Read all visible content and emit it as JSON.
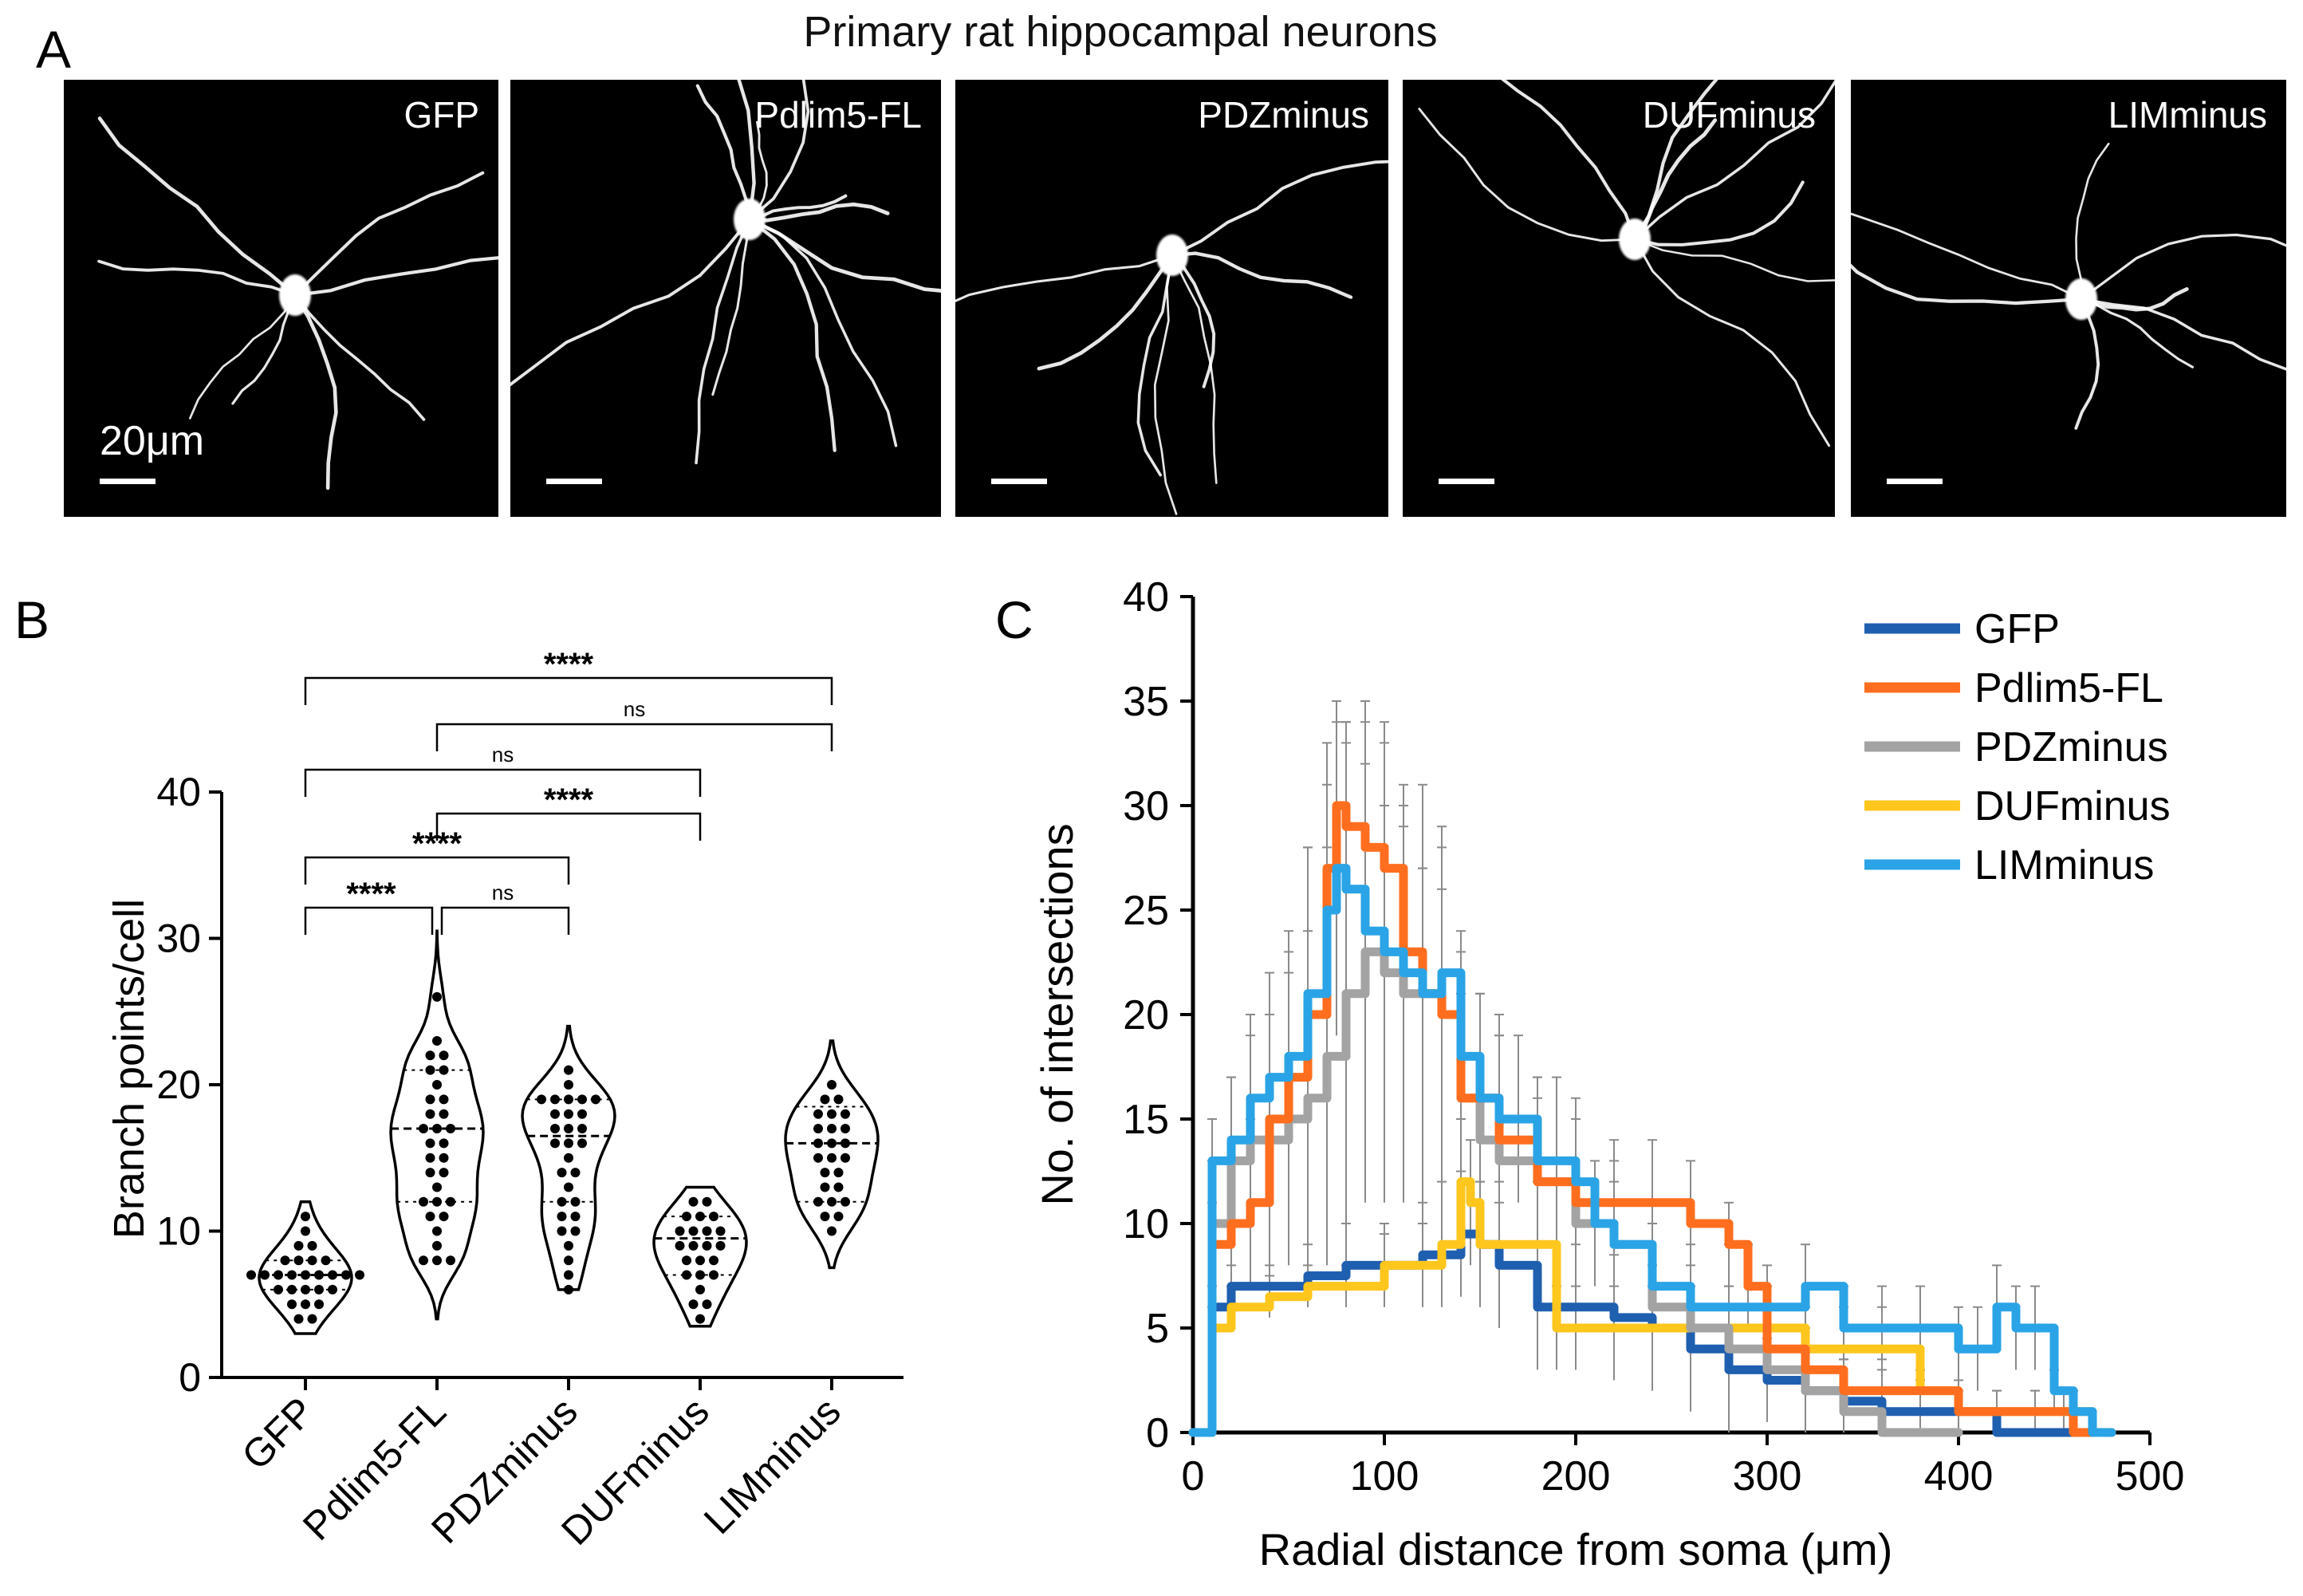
{
  "figure": {
    "panel_a_title": "Primary rat hippocampal neurons",
    "labels": {
      "a": "A",
      "b": "B",
      "c": "C"
    },
    "micrographs": [
      "GFP",
      "Pdlim5-FL",
      "PDZminus",
      "DUFminus",
      "LIMminus"
    ],
    "scale_bar_label": "20μm"
  },
  "chart_data": [
    {
      "type": "violin",
      "panel": "B",
      "ylabel": "Branch points/cell",
      "ylim": [
        0,
        40
      ],
      "yticks": [
        "0",
        "10",
        "20",
        "30",
        "40"
      ],
      "categories": [
        "GFP",
        "Pdlim5-FL",
        "PDZminus",
        "DUFminus",
        "LIMminus"
      ],
      "medians": [
        7,
        17,
        16.5,
        9.5,
        16
      ],
      "quartiles": [
        [
          6,
          8
        ],
        [
          12,
          21
        ],
        [
          12,
          19
        ],
        [
          7,
          11
        ],
        [
          12,
          18.5
        ]
      ],
      "ranges": [
        [
          3,
          12
        ],
        [
          4,
          30.5
        ],
        [
          6,
          24
        ],
        [
          3.5,
          13
        ],
        [
          7.5,
          23
        ]
      ],
      "points": [
        [
          4,
          4,
          5,
          5,
          5,
          6,
          6,
          6,
          6,
          6,
          7,
          7,
          7,
          7,
          7,
          7,
          7,
          7,
          7,
          8,
          8,
          8,
          8,
          9,
          9,
          10,
          11
        ],
        [
          8,
          8,
          8,
          9,
          10,
          11,
          11,
          12,
          12,
          12,
          13,
          14,
          14,
          15,
          15,
          16,
          16,
          17,
          17,
          17,
          18,
          18,
          19,
          19,
          20,
          21,
          21,
          22,
          22,
          23,
          26
        ],
        [
          6,
          7,
          8,
          9,
          10,
          10,
          11,
          11,
          12,
          12,
          13,
          14,
          14,
          15,
          16,
          16,
          16,
          17,
          17,
          17,
          18,
          18,
          18,
          19,
          19,
          19,
          19,
          19,
          20,
          21
        ],
        [
          4,
          5,
          5,
          6,
          7,
          7,
          7,
          8,
          8,
          8,
          9,
          9,
          9,
          9,
          10,
          10,
          10,
          10,
          11,
          11,
          11,
          12,
          12
        ],
        [
          10,
          11,
          11,
          12,
          12,
          12,
          13,
          13,
          14,
          14,
          15,
          15,
          15,
          16,
          16,
          16,
          17,
          17,
          17,
          18,
          18,
          18,
          19,
          19,
          20
        ]
      ],
      "comparisons": [
        {
          "from": 0,
          "to": 4,
          "label": "****"
        },
        {
          "from": 1,
          "to": 4,
          "label": "ns"
        },
        {
          "from": 0,
          "to": 3,
          "label": "ns"
        },
        {
          "from": 1,
          "to": 3,
          "label": "****"
        },
        {
          "from": 0,
          "to": 2,
          "label": "****"
        },
        {
          "from": 0,
          "to": 1,
          "label": "****"
        },
        {
          "from": 1,
          "to": 2,
          "label": "ns"
        }
      ]
    },
    {
      "type": "line",
      "panel": "C",
      "xlabel": "Radial distance from soma (μm)",
      "ylabel": "No. of intersections",
      "xlim": [
        0,
        500
      ],
      "ylim": [
        0,
        40
      ],
      "xticks": [
        "0",
        "100",
        "200",
        "300",
        "400",
        "500"
      ],
      "yticks": [
        "0",
        "5",
        "10",
        "15",
        "20",
        "25",
        "30",
        "35",
        "40"
      ],
      "legend_position": "top-right",
      "series": [
        {
          "name": "GFP",
          "color": "#1f5fb0",
          "x": [
            0,
            10,
            20,
            40,
            60,
            80,
            100,
            120,
            140,
            150,
            160,
            180,
            200,
            220,
            240,
            260,
            280,
            300,
            320,
            340,
            360,
            380,
            400,
            420,
            440,
            460,
            480
          ],
          "y": [
            0,
            6,
            7,
            7,
            7.5,
            8,
            8,
            8.5,
            9.5,
            9,
            8,
            6,
            6,
            5.5,
            5,
            4,
            3,
            2.5,
            2,
            1.5,
            1,
            1,
            1,
            0,
            0,
            0,
            0
          ],
          "err": [
            0,
            1,
            1,
            1,
            1.5,
            2,
            2,
            2.5,
            3,
            3,
            3,
            3,
            3,
            3,
            3,
            3,
            3,
            2,
            2,
            2,
            2,
            1.5,
            1.5,
            0,
            0,
            0,
            0
          ]
        },
        {
          "name": "Pdlim5-FL",
          "color": "#ff6e1f",
          "x": [
            0,
            10,
            20,
            30,
            40,
            50,
            60,
            70,
            75,
            80,
            90,
            100,
            110,
            120,
            130,
            140,
            160,
            180,
            200,
            220,
            240,
            260,
            280,
            290,
            300,
            320,
            340,
            360,
            380,
            400,
            420,
            440,
            455,
            460,
            470,
            480
          ],
          "y": [
            0,
            9,
            10,
            11,
            15,
            17,
            20,
            27,
            30,
            29,
            28,
            27,
            23,
            21,
            20,
            16,
            14,
            12,
            11,
            11,
            11,
            10,
            9,
            7,
            4,
            3,
            2,
            2,
            2,
            1,
            1,
            1,
            1,
            0,
            0,
            0
          ],
          "err": [
            0,
            2,
            3,
            4,
            5,
            6,
            8,
            4,
            4,
            5,
            6,
            7,
            7,
            6,
            6,
            5,
            5,
            4,
            4,
            3,
            3,
            3,
            2,
            2,
            2,
            2,
            1.5,
            1.5,
            1,
            1,
            1,
            1,
            1,
            0,
            0,
            0
          ]
        },
        {
          "name": "PDZminus",
          "color": "#a3a3a3",
          "x": [
            0,
            10,
            20,
            30,
            40,
            50,
            60,
            70,
            80,
            90,
            100,
            110,
            120,
            130,
            140,
            150,
            160,
            180,
            200,
            220,
            240,
            260,
            280,
            300,
            320,
            340,
            360,
            380,
            400
          ],
          "y": [
            0,
            10,
            13,
            14,
            14,
            15,
            16,
            18,
            21,
            23,
            22,
            21,
            21,
            20,
            16,
            14,
            13,
            12,
            10,
            9,
            6,
            5,
            4,
            3,
            2,
            1,
            0,
            0,
            0
          ],
          "err": [
            0,
            3,
            4,
            5,
            6,
            7,
            8,
            10,
            12,
            12,
            11,
            10,
            10,
            9,
            8,
            7,
            6,
            5,
            5,
            4,
            4,
            3,
            3,
            2,
            2,
            1,
            0,
            0,
            0
          ]
        },
        {
          "name": "DUFminus",
          "color": "#ffc61e",
          "x": [
            0,
            10,
            20,
            40,
            60,
            80,
            100,
            120,
            130,
            140,
            145,
            150,
            160,
            180,
            190,
            200,
            220,
            240,
            260,
            280,
            300,
            320,
            340,
            360,
            380,
            400,
            420,
            440,
            460,
            470,
            480
          ],
          "y": [
            0,
            5,
            6,
            6.5,
            7,
            7,
            8,
            8,
            9,
            12,
            11,
            9,
            9,
            9,
            5,
            5,
            5,
            5,
            5,
            5,
            5,
            4,
            4,
            4,
            2,
            1,
            1,
            1,
            1,
            0,
            0
          ],
          "err": [
            0,
            1,
            1,
            1,
            1,
            1,
            1.5,
            2,
            3,
            3,
            3,
            3,
            3,
            3,
            2,
            2,
            2,
            2,
            2,
            2,
            2,
            2,
            2,
            2,
            1,
            1,
            1,
            1,
            1,
            0,
            0
          ]
        },
        {
          "name": "LIMminus",
          "color": "#2aa4e6",
          "x": [
            0,
            10,
            20,
            30,
            40,
            50,
            60,
            70,
            75,
            80,
            90,
            100,
            110,
            120,
            130,
            140,
            150,
            160,
            170,
            180,
            190,
            200,
            210,
            220,
            240,
            260,
            280,
            300,
            320,
            340,
            360,
            380,
            400,
            410,
            420,
            430,
            440,
            450,
            460,
            470,
            480
          ],
          "y": [
            0,
            13,
            14,
            16,
            17,
            18,
            21,
            25,
            27,
            26,
            24,
            23,
            22,
            21,
            22,
            18,
            16,
            15,
            15,
            13,
            13,
            12,
            10,
            9,
            7,
            6,
            6,
            6,
            7,
            5,
            5,
            5,
            4,
            4,
            6,
            5,
            5,
            2,
            1,
            0,
            0
          ],
          "err": [
            0,
            2,
            3,
            4,
            5,
            6,
            7,
            8,
            8,
            8,
            8,
            7,
            7,
            6,
            6,
            5,
            5,
            5,
            4,
            4,
            4,
            4,
            3,
            3,
            3,
            3,
            3,
            2,
            2,
            2,
            2,
            2,
            2,
            2,
            2,
            2,
            2,
            1,
            1,
            0,
            0
          ]
        }
      ]
    }
  ]
}
